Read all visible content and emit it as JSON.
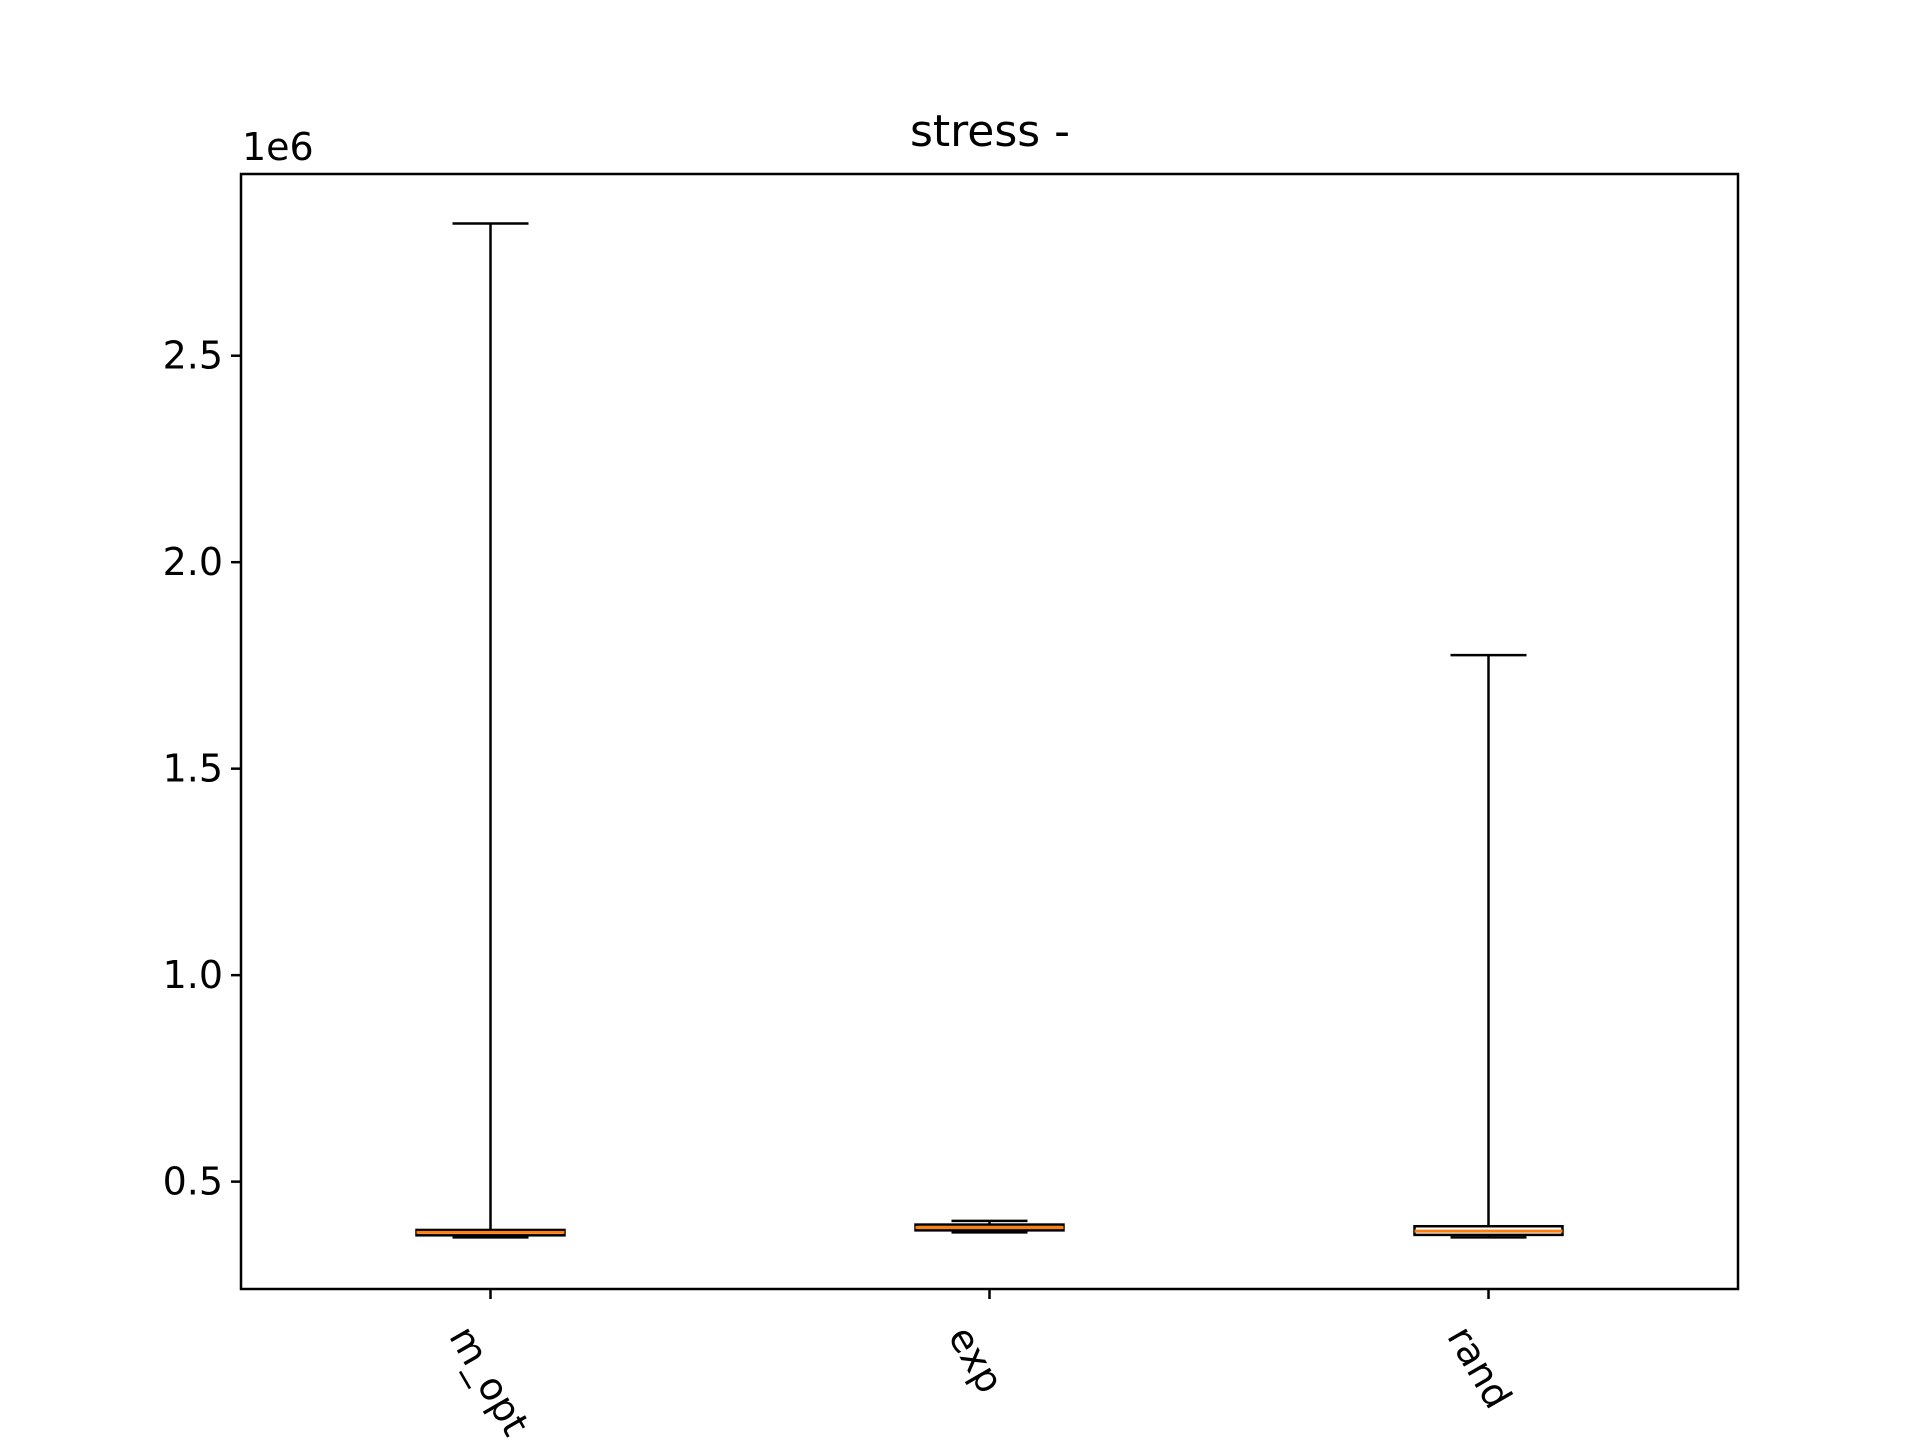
{
  "chart_data": {
    "type": "box",
    "title": "stress -",
    "xlabel": "",
    "ylabel": "",
    "y_offset_label": "1e6",
    "ylim": [
      0.24,
      2.94
    ],
    "yticks": [
      0.5,
      1.0,
      1.5,
      2.0,
      2.5
    ],
    "ytick_labels": [
      "0.5",
      "1.0",
      "1.5",
      "2.0",
      "2.5"
    ],
    "categories": [
      "m_opt",
      "exp",
      "rand"
    ],
    "boxes": [
      {
        "name": "m_opt",
        "whisker_low": 0.365,
        "q1": 0.37,
        "median": 0.377,
        "q3": 0.383,
        "whisker_high": 2.82
      },
      {
        "name": "exp",
        "whisker_low": 0.377,
        "q1": 0.382,
        "median": 0.389,
        "q3": 0.396,
        "whisker_high": 0.405
      },
      {
        "name": "rand",
        "whisker_low": 0.365,
        "q1": 0.371,
        "median": 0.38,
        "q3": 0.392,
        "whisker_high": 1.775
      }
    ],
    "colors": {
      "median": "#ff7f0e",
      "box": "#000000",
      "axes": "#000000"
    },
    "grid": false
  }
}
